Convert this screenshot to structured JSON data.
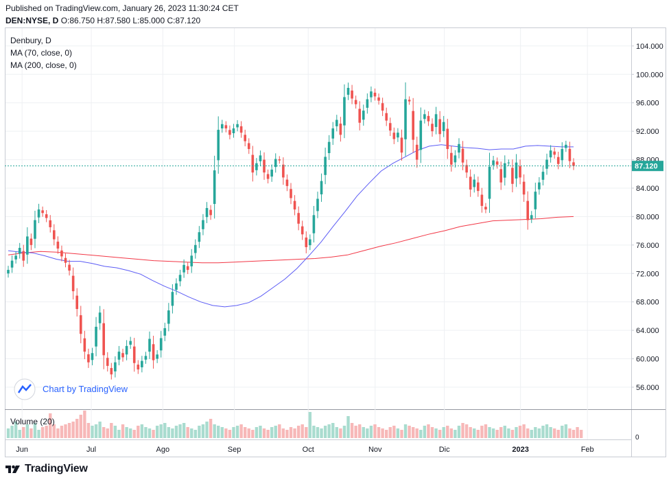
{
  "header": {
    "published": "Published on TradingView.com, January 26, 2023 11:30:24 CET",
    "symbol": "DEN:NYSE, D",
    "ohlc": "O:86.750 H:87.580 L:85.000 C:87.120"
  },
  "legend": {
    "title": "Denbury, D",
    "ma70": "MA (70, close, 0)",
    "ma200": "MA (200, close, 0)"
  },
  "watermark": "Chart by TradingView",
  "volume_label": "Volume (20)",
  "volume_zero": "0",
  "last_price_label": "87.120",
  "footer_brand": "TradingView",
  "colors": {
    "up": "#26a69a",
    "down": "#ef5350",
    "ma70": "#5b5bf5",
    "ma200": "#f23645",
    "price_line": "#26a69a"
  },
  "chart_data": {
    "type": "candlestick",
    "ylim": [
      53.0,
      106.5
    ],
    "yticks": [
      56,
      60,
      64,
      68,
      72,
      76,
      80,
      84,
      88,
      92,
      96,
      100,
      104
    ],
    "ytick_labels": [
      "56.000",
      "60.000",
      "64.000",
      "68.000",
      "72.000",
      "76.000",
      "80.000",
      "84.000",
      "88.000",
      "92.000",
      "96.000",
      "100.000",
      "104.000"
    ],
    "xticks": [
      {
        "label": "Jun",
        "date": "2022-06-01"
      },
      {
        "label": "Jul",
        "date": "2022-07-01"
      },
      {
        "label": "Ago",
        "date": "2022-08-01"
      },
      {
        "label": "Sep",
        "date": "2022-09-01"
      },
      {
        "label": "Oct",
        "date": "2022-10-03"
      },
      {
        "label": "Nov",
        "date": "2022-11-01"
      },
      {
        "label": "Dic",
        "date": "2022-12-01"
      },
      {
        "label": "2023",
        "date": "2023-01-03"
      },
      {
        "label": "Feb",
        "date": "2023-02-01"
      }
    ],
    "last_close": 87.12,
    "closes": [
      72.5,
      73.8,
      74.5,
      75.6,
      73.8,
      77.2,
      76.0,
      79.5,
      81.0,
      80.5,
      79.8,
      78.5,
      76.8,
      75.5,
      74.4,
      73.5,
      72.4,
      69.5,
      67.0,
      63.5,
      61.0,
      59.5,
      60.8,
      64.5,
      66.5,
      60.5,
      59.0,
      57.8,
      59.5,
      61.0,
      60.2,
      61.8,
      62.5,
      59.4,
      58.5,
      59.7,
      60.4,
      62.8,
      59.8,
      60.6,
      62.9,
      64.3,
      66.8,
      69.4,
      70.6,
      71.8,
      73.2,
      72.5,
      74.5,
      76.0,
      77.8,
      79.5,
      81.2,
      80.2,
      86.5,
      92.2,
      93.0,
      92.4,
      91.5,
      92.4,
      93.0,
      91.8,
      90.6,
      89.5,
      86.2,
      87.5,
      88.6,
      86.2,
      85.3,
      86.6,
      88.1,
      87.9,
      85.5,
      84.3,
      82.6,
      81.0,
      79.0,
      77.5,
      75.7,
      76.8,
      80.2,
      82.5,
      85.0,
      88.4,
      90.5,
      92.4,
      93.6,
      91.5,
      96.8,
      98.1,
      96.6,
      95.8,
      93.2,
      94.9,
      96.5,
      97.6,
      96.9,
      96.3,
      94.9,
      93.5,
      92.1,
      90.9,
      91.8,
      89.0,
      96.5,
      96.2,
      90.8,
      88.0,
      93.5,
      94.4,
      93.4,
      92.0,
      94.4,
      91.6,
      93.3,
      89.5,
      87.3,
      88.6,
      90.2,
      87.6,
      86.2,
      83.8,
      85.2,
      83.6,
      81.5,
      81.0,
      87.0,
      87.9,
      87.3,
      84.8,
      87.5,
      87.6,
      84.6,
      87.6,
      85.5,
      83.1,
      79.5,
      80.2,
      83.5,
      84.8,
      86.3,
      88.0,
      89.3,
      88.7,
      87.4,
      89.5,
      90.1,
      87.8,
      87.12
    ],
    "ma70": [
      75.2,
      75.0,
      74.9,
      74.5,
      74.0,
      73.7,
      73.7,
      73.4,
      73.0,
      72.8,
      72.4,
      71.9,
      71.0,
      70.2,
      69.5,
      68.7,
      68.0,
      67.5,
      67.3,
      67.5,
      67.9,
      68.8,
      70.0,
      71.2,
      72.7,
      74.5,
      76.4,
      78.6,
      80.7,
      82.9,
      84.7,
      86.4,
      87.5,
      88.4,
      89.3,
      89.9,
      90.1,
      89.9,
      89.7,
      89.6,
      89.4,
      89.5,
      89.5,
      89.9,
      90.0,
      89.9,
      89.8,
      89.8
    ],
    "ma200": [
      74.6,
      74.9,
      75.1,
      75.0,
      74.8,
      74.6,
      74.4,
      74.2,
      74.0,
      73.8,
      73.7,
      73.6,
      73.5,
      73.5,
      73.6,
      73.7,
      73.8,
      73.9,
      74.0,
      74.1,
      74.3,
      74.6,
      75.2,
      75.8,
      76.3,
      76.9,
      77.5,
      78.0,
      78.6,
      79.0,
      79.4,
      79.5,
      79.6,
      79.7,
      79.9,
      80.0
    ],
    "volume_relative": [
      0.35,
      0.45,
      0.6,
      0.3,
      0.4,
      0.5,
      0.35,
      0.55,
      0.3,
      0.4,
      0.45,
      0.9,
      0.5,
      0.35,
      0.45,
      0.5,
      0.55,
      0.6,
      0.7,
      0.85,
      1.0,
      0.55,
      0.45,
      0.5,
      0.6,
      0.4,
      0.35,
      0.55,
      0.45,
      0.3,
      0.5,
      0.4,
      0.35,
      0.3,
      0.45,
      0.5,
      0.4,
      0.35,
      0.3,
      0.45,
      0.5,
      0.55,
      0.4,
      0.35,
      0.45,
      0.5,
      0.55,
      0.4,
      0.35,
      0.3,
      0.45,
      0.5,
      0.6,
      0.7,
      0.5,
      0.45,
      0.4,
      0.35,
      0.3,
      0.4,
      0.45,
      0.5,
      0.4,
      0.35,
      0.3,
      0.4,
      0.45,
      0.35,
      0.3,
      0.4,
      0.45,
      0.5,
      0.35,
      0.3,
      0.4,
      0.35,
      0.45,
      0.5,
      0.4,
      0.95,
      0.45,
      0.4,
      0.35,
      0.45,
      0.5,
      0.55,
      0.4,
      0.35,
      0.45,
      0.8,
      0.55,
      0.45,
      0.5,
      0.4,
      0.35,
      0.45,
      0.5,
      0.4,
      0.35,
      0.3,
      0.4,
      0.45,
      0.35,
      0.3,
      0.5,
      0.45,
      0.4,
      0.35,
      0.3,
      0.45,
      0.5,
      0.4,
      0.35,
      0.3,
      0.4,
      0.45,
      0.35,
      0.3,
      0.45,
      0.55,
      0.5,
      0.4,
      0.35,
      0.3,
      0.45,
      0.5,
      0.4,
      0.35,
      0.3,
      0.4,
      0.45,
      0.35,
      0.3,
      0.4,
      0.45,
      0.5,
      0.35,
      0.3,
      0.4,
      0.35,
      0.45,
      0.5,
      0.4,
      0.35,
      0.3,
      0.45,
      0.5,
      0.35,
      0.3,
      0.4,
      0.3
    ]
  }
}
